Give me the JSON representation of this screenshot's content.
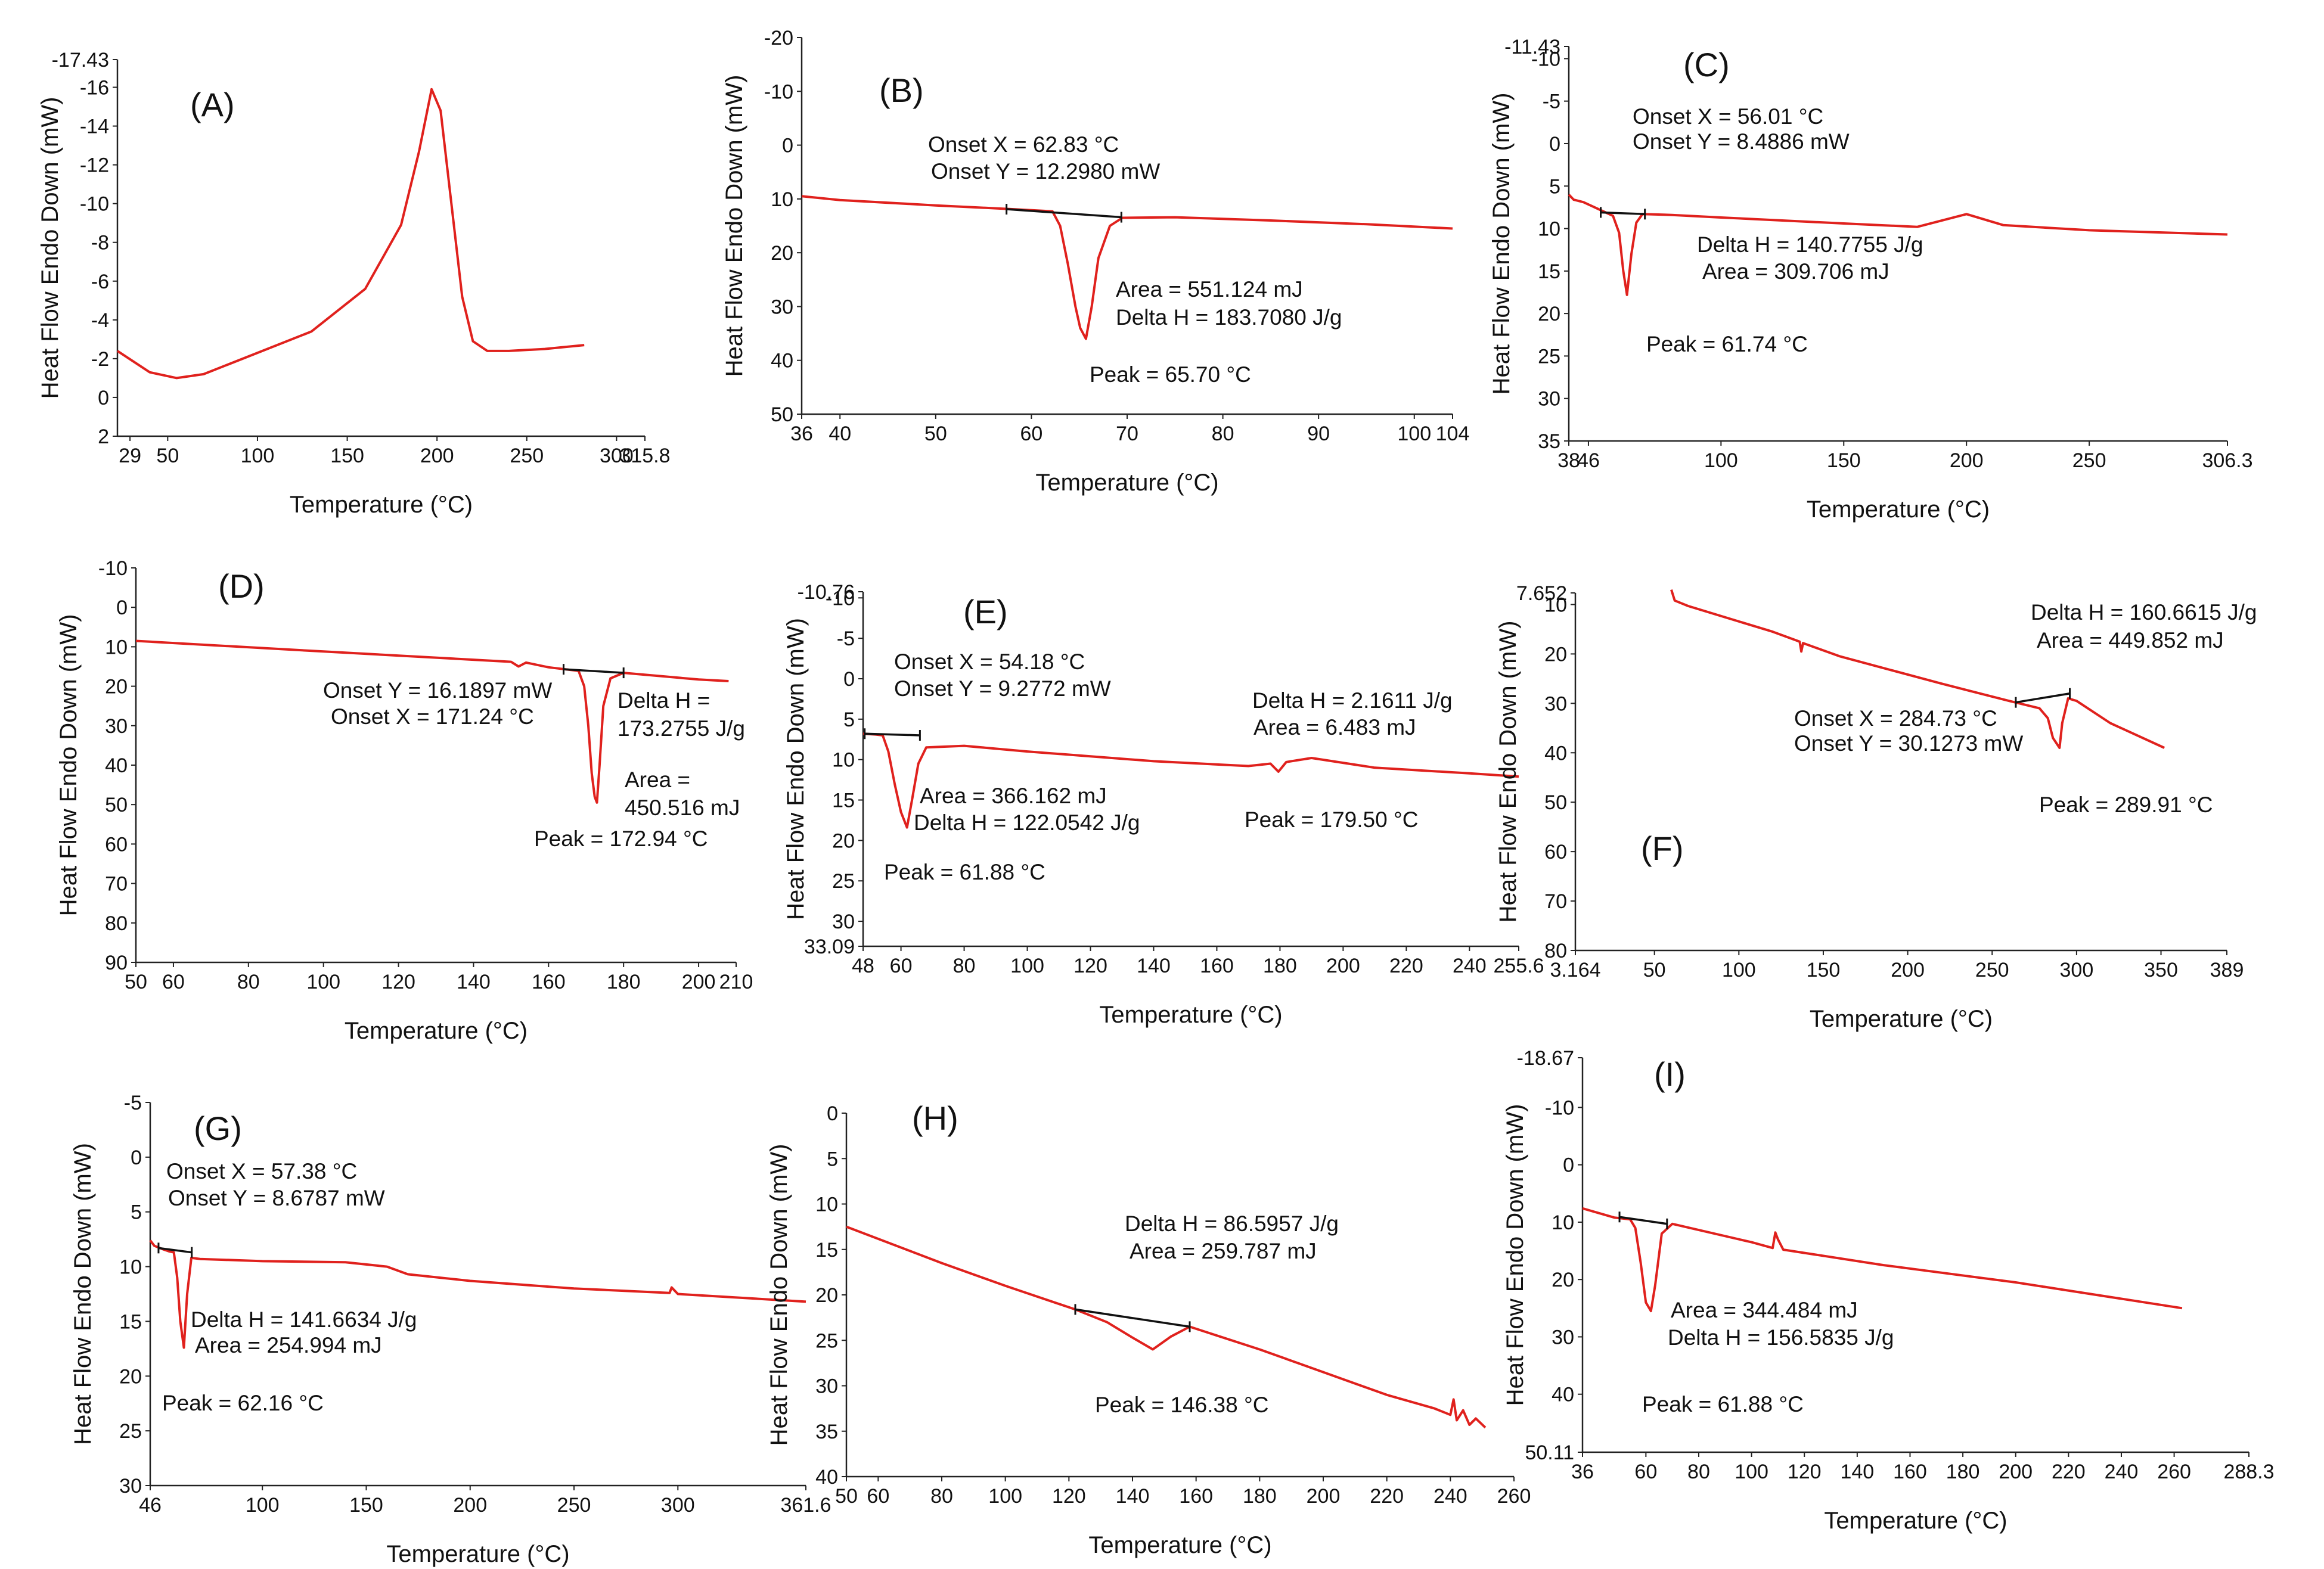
{
  "figure": {
    "colors": {
      "curve": "#e0211d",
      "baseline": "#111111",
      "axis": "#222222",
      "text": "#111111"
    }
  },
  "chart_data": [
    {
      "type": "line",
      "label": "(A)",
      "xlabel": "Temperature (°C)",
      "ylabel": "Heat Flow Endo Down (mW)",
      "xlim": [
        22,
        315.8
      ],
      "ylim": [
        2,
        -17.43
      ],
      "xticks": [
        29,
        50,
        100,
        150,
        200,
        250,
        300,
        315.8
      ],
      "yticks": [
        -17.43,
        -16,
        -14,
        -12,
        -10,
        -8,
        -6,
        -4,
        -2,
        0,
        2
      ],
      "series": [
        {
          "name": "DSC curve",
          "x": [
            22,
            40,
            55,
            70,
            100,
            130,
            160,
            180,
            190,
            197,
            202,
            208,
            214,
            220,
            228,
            240,
            260,
            282
          ],
          "y": [
            -2.4,
            -1.3,
            -1.0,
            -1.2,
            -2.3,
            -3.4,
            -5.6,
            -8.9,
            -12.7,
            -15.9,
            -14.8,
            -10.0,
            -5.2,
            -2.9,
            -2.4,
            -2.4,
            -2.5,
            -2.7
          ]
        }
      ],
      "annotations": []
    },
    {
      "type": "line",
      "label": "(B)",
      "xlabel": "Temperature (°C)",
      "ylabel": "Heat Flow Endo Down (mW)",
      "xlim": [
        36,
        104
      ],
      "ylim": [
        50,
        -20
      ],
      "xticks": [
        36,
        40,
        50,
        60,
        70,
        80,
        90,
        100,
        104
      ],
      "yticks": [
        -20,
        -10,
        0,
        10,
        20,
        30,
        40,
        50
      ],
      "series": [
        {
          "name": "DSC curve",
          "x": [
            36,
            40,
            50,
            58,
            62.2,
            63,
            63.8,
            64.6,
            65.1,
            65.7,
            66.3,
            67,
            68.2,
            69.5,
            75,
            85,
            95,
            104
          ],
          "y": [
            9.5,
            10.2,
            11.2,
            11.9,
            12.3,
            15,
            22,
            30,
            34,
            36,
            30,
            21,
            15,
            13.5,
            13.4,
            14.0,
            14.7,
            15.5
          ]
        }
      ],
      "baseline": {
        "x": [
          57.4,
          69.4
        ],
        "y": [
          11.9,
          13.4
        ]
      },
      "annotations": [
        "Onset X = 62.83 °C",
        "Onset Y = 12.2980 mW",
        "Area = 551.124 mJ",
        "Delta H = 183.7080 J/g",
        "Peak = 65.70 °C"
      ]
    },
    {
      "type": "line",
      "label": "(C)",
      "xlabel": "Temperature (°C)",
      "ylabel": "Heat Flow Endo Down (mW)",
      "xlim": [
        38,
        306.3
      ],
      "ylim": [
        35,
        -11.43
      ],
      "xticks": [
        38,
        46,
        100,
        150,
        200,
        250,
        306.3
      ],
      "yticks": [
        -11.43,
        -10,
        -5,
        0,
        5,
        10,
        15,
        20,
        25,
        30,
        35
      ],
      "series": [
        {
          "name": "DSC curve",
          "x": [
            38,
            40,
            44,
            53,
            56,
            58.5,
            60.2,
            61.7,
            63.5,
            65.5,
            68,
            80,
            100,
            150,
            180,
            200,
            215,
            250,
            306.3
          ],
          "y": [
            6.0,
            6.6,
            6.9,
            8.1,
            8.5,
            10.5,
            15,
            17.8,
            13,
            9.3,
            8.3,
            8.4,
            8.7,
            9.4,
            9.8,
            8.3,
            9.6,
            10.2,
            10.7
          ]
        }
      ],
      "baseline": {
        "x": [
          51,
          69
        ],
        "y": [
          8.1,
          8.3
        ]
      },
      "annotations": [
        "Onset X = 56.01 °C",
        "Onset Y = 8.4886 mW",
        "Delta H = 140.7755 J/g",
        "Area = 309.706 mJ",
        "Peak = 61.74 °C"
      ]
    },
    {
      "type": "line",
      "label": "(D)",
      "xlabel": "Temperature (°C)",
      "ylabel": "Heat Flow Endo Down (mW)",
      "xlim": [
        50,
        210
      ],
      "ylim": [
        90,
        -10
      ],
      "xticks": [
        50,
        60,
        80,
        100,
        120,
        140,
        160,
        180,
        200,
        210
      ],
      "yticks": [
        -10,
        0,
        10,
        20,
        30,
        40,
        50,
        60,
        70,
        80,
        90
      ],
      "series": [
        {
          "name": "DSC curve",
          "x": [
            50,
            100,
            150,
            152,
            154,
            160,
            168,
            169.5,
            170.6,
            171.5,
            172.3,
            172.9,
            173.6,
            174.6,
            176.5,
            180,
            200,
            208
          ],
          "y": [
            8.5,
            11.2,
            13.8,
            15.0,
            14.0,
            15.2,
            16.1,
            20,
            30,
            42,
            48,
            49.5,
            40,
            25,
            18,
            16.6,
            18.3,
            18.7
          ]
        }
      ],
      "baseline": {
        "x": [
          164,
          180
        ],
        "y": [
          15.7,
          16.6
        ]
      },
      "annotations": [
        "Onset Y = 16.1897 mW",
        "Onset X = 171.24 °C",
        "Delta H =",
        "173.2755 J/g",
        "Area =",
        "450.516 mJ",
        "Peak = 172.94 °C"
      ]
    },
    {
      "type": "line",
      "label": "(E)",
      "xlabel": "Temperature (°C)",
      "ylabel": "Heat Flow Endo Down (mW)",
      "xlim": [
        48,
        255.6
      ],
      "ylim": [
        33.09,
        -10.76
      ],
      "xticks": [
        48,
        60,
        80,
        100,
        120,
        140,
        160,
        180,
        200,
        220,
        240,
        255.6
      ],
      "yticks": [
        -10.76,
        -10,
        -5,
        0,
        5,
        10,
        15,
        20,
        25,
        30,
        33.09
      ],
      "series": [
        {
          "name": "DSC curve",
          "x": [
            48,
            52,
            54.2,
            56,
            58,
            60,
            61.9,
            63.5,
            65.5,
            68,
            80,
            100,
            140,
            170,
            177,
            179.5,
            182,
            190,
            210,
            240,
            255.6
          ],
          "y": [
            6.8,
            6.9,
            7.0,
            9,
            13,
            16.5,
            18.4,
            15,
            10.5,
            8.5,
            8.3,
            9.0,
            10.2,
            10.8,
            10.5,
            11.5,
            10.3,
            9.8,
            11.0,
            11.7,
            12.1
          ]
        }
      ],
      "baseline": {
        "x": [
          48.5,
          66
        ],
        "y": [
          6.8,
          7.0
        ]
      },
      "annotations": [
        "Onset X = 54.18 °C",
        "Onset Y = 9.2772 mW",
        "Area = 366.162 mJ",
        "Delta H = 122.0542 J/g",
        "Peak = 61.88 °C",
        "Delta H = 2.1611 J/g",
        "Area = 6.483 mJ",
        "Peak = 179.50 °C"
      ]
    },
    {
      "type": "line",
      "label": "(F)",
      "xlabel": "Temperature (°C)",
      "ylabel": "Heat Flow Endo Down (mW)",
      "xlim": [
        3.164,
        389
      ],
      "ylim": [
        80,
        7.652
      ],
      "xticks": [
        3.164,
        50,
        100,
        150,
        200,
        250,
        300,
        350,
        389
      ],
      "yticks": [
        7.652,
        10,
        20,
        30,
        40,
        50,
        60,
        70,
        80
      ],
      "series": [
        {
          "name": "DSC curve",
          "x": [
            60,
            62,
            70,
            120,
            136,
            137,
            138,
            160,
            220,
            260,
            278,
            283,
            286,
            289.9,
            291.5,
            295,
            300,
            320,
            352
          ],
          "y": [
            7.0,
            9.2,
            10.3,
            15.5,
            17.5,
            19.5,
            17.8,
            20.5,
            26.0,
            29.5,
            31.0,
            33,
            37,
            39,
            34,
            29,
            29.5,
            34,
            39.0
          ]
        }
      ],
      "baseline": {
        "x": [
          264,
          296
        ],
        "y": [
          29.8,
          28.0
        ]
      },
      "annotations": [
        "Delta H = 160.6615 J/g",
        "Area = 449.852 mJ",
        "Onset X = 284.73 °C",
        "Onset Y = 30.1273 mW",
        "Peak = 289.91 °C"
      ]
    },
    {
      "type": "line",
      "label": "(G)",
      "xlabel": "Temperature (°C)",
      "ylabel": "Heat Flow Endo Down (mW)",
      "xlim": [
        46,
        361.6
      ],
      "ylim": [
        30,
        -5
      ],
      "xticks": [
        46,
        100,
        150,
        200,
        250,
        300,
        361.6
      ],
      "yticks": [
        -5,
        0,
        5,
        10,
        15,
        20,
        25,
        30
      ],
      "series": [
        {
          "name": "DSC curve",
          "x": [
            46,
            48,
            52,
            55,
            57.4,
            59,
            60.5,
            62.2,
            63.8,
            65.8,
            70,
            100,
            140,
            160,
            170,
            200,
            250,
            296,
            297,
            300,
            361.6
          ],
          "y": [
            7.6,
            8.1,
            8.4,
            8.6,
            8.7,
            11,
            15,
            17.4,
            12.5,
            9.2,
            9.3,
            9.5,
            9.6,
            10.0,
            10.7,
            11.3,
            12.0,
            12.4,
            11.9,
            12.5,
            13.2
          ]
        }
      ],
      "baseline": {
        "x": [
          50,
          66
        ],
        "y": [
          8.3,
          8.7
        ]
      },
      "annotations": [
        "Onset X = 57.38 °C",
        "Onset Y = 8.6787 mW",
        "Delta H = 141.6634 J/g",
        "Area = 254.994 mJ",
        "Peak = 62.16 °C"
      ]
    },
    {
      "type": "line",
      "label": "(H)",
      "xlabel": "Temperature (°C)",
      "ylabel": "Heat Flow Endo Down (mW)",
      "xlim": [
        50,
        260
      ],
      "ylim": [
        40,
        0
      ],
      "xticks": [
        50,
        60,
        80,
        100,
        120,
        140,
        160,
        180,
        200,
        220,
        240,
        260
      ],
      "yticks": [
        0,
        5,
        10,
        15,
        20,
        25,
        30,
        35,
        40
      ],
      "series": [
        {
          "name": "DSC curve",
          "x": [
            50,
            80,
            100,
            122,
            132,
            140,
            146.4,
            152,
            158,
            180,
            200,
            220,
            235,
            240,
            241,
            242,
            244,
            246,
            248,
            251
          ],
          "y": [
            12.5,
            16.5,
            19.0,
            21.6,
            23.0,
            24.7,
            26.0,
            24.6,
            23.5,
            26.0,
            28.5,
            31.0,
            32.5,
            33.2,
            31.5,
            33.8,
            32.7,
            34.3,
            33.6,
            34.6
          ]
        }
      ],
      "baseline": {
        "x": [
          122,
          158
        ],
        "y": [
          21.6,
          23.5
        ]
      },
      "annotations": [
        "Delta H = 86.5957 J/g",
        "Area = 259.787 mJ",
        "Peak = 146.38 °C"
      ]
    },
    {
      "type": "line",
      "label": "(I)",
      "xlabel": "Temperature (°C)",
      "ylabel": "Heat Flow Endo Down (mW)",
      "xlim": [
        36,
        288.3
      ],
      "ylim": [
        50.11,
        -18.67
      ],
      "xticks": [
        36,
        60,
        80,
        100,
        120,
        140,
        160,
        180,
        200,
        220,
        240,
        260,
        288.3
      ],
      "yticks": [
        -18.67,
        -10,
        0,
        10,
        20,
        30,
        40,
        50.11
      ],
      "series": [
        {
          "name": "DSC curve",
          "x": [
            36,
            48,
            54,
            56,
            58,
            60,
            61.9,
            63.5,
            66,
            70,
            100,
            108,
            109,
            110,
            112,
            150,
            200,
            263
          ],
          "y": [
            7.6,
            9.2,
            9.5,
            11,
            17,
            24,
            25.5,
            21,
            12,
            10.3,
            13.5,
            14.5,
            11.8,
            13.0,
            14.8,
            17.5,
            20.5,
            25.0
          ]
        }
      ],
      "baseline": {
        "x": [
          50,
          68
        ],
        "y": [
          9.1,
          10.3
        ]
      },
      "annotations": [
        "Area = 344.484 mJ",
        "Delta H = 156.5835 J/g",
        "Peak = 61.88 °C"
      ]
    }
  ]
}
